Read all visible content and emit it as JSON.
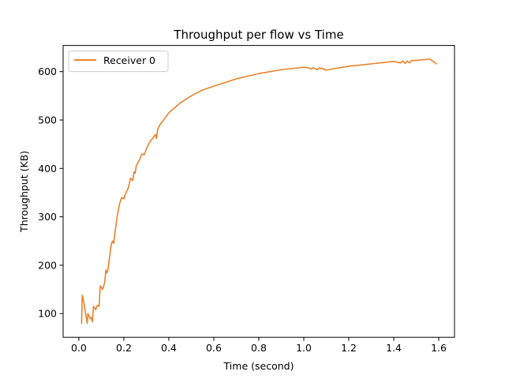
{
  "chart_data": {
    "type": "line",
    "title": "Throughput per flow vs Time",
    "xlabel": "Time (second)",
    "ylabel": "Throughput (KB)",
    "xlim": [
      -0.07,
      1.67
    ],
    "ylim": [
      51,
      654
    ],
    "xticks": [
      0.0,
      0.2,
      0.4,
      0.6,
      0.8,
      1.0,
      1.2,
      1.4,
      1.6
    ],
    "xtick_labels": [
      "0.0",
      "0.2",
      "0.4",
      "0.6",
      "0.8",
      "1.0",
      "1.2",
      "1.4",
      "1.6"
    ],
    "yticks": [
      100,
      200,
      300,
      400,
      500,
      600
    ],
    "ytick_labels": [
      "100",
      "200",
      "300",
      "400",
      "500",
      "600"
    ],
    "grid": false,
    "legend_position": "top-left",
    "series": [
      {
        "name": "Receiver 0",
        "color": "#e8822a",
        "x": [
          0.012,
          0.015,
          0.02,
          0.03,
          0.037,
          0.04,
          0.045,
          0.05,
          0.055,
          0.06,
          0.065,
          0.07,
          0.075,
          0.08,
          0.085,
          0.09,
          0.095,
          0.1,
          0.105,
          0.11,
          0.115,
          0.12,
          0.125,
          0.13,
          0.135,
          0.14,
          0.145,
          0.15,
          0.155,
          0.16,
          0.17,
          0.18,
          0.19,
          0.2,
          0.205,
          0.21,
          0.22,
          0.23,
          0.24,
          0.245,
          0.25,
          0.255,
          0.26,
          0.27,
          0.28,
          0.29,
          0.3,
          0.31,
          0.32,
          0.33,
          0.34,
          0.345,
          0.35,
          0.36,
          0.38,
          0.4,
          0.45,
          0.5,
          0.55,
          0.6,
          0.7,
          0.8,
          0.9,
          1.0,
          1.02,
          1.035,
          1.04,
          1.05,
          1.06,
          1.07,
          1.075,
          1.08,
          1.1,
          1.12,
          1.2,
          1.3,
          1.4,
          1.43,
          1.44,
          1.45,
          1.46,
          1.47,
          1.48,
          1.5,
          1.56,
          1.59
        ],
        "y": [
          80,
          138,
          128,
          100,
          80,
          100,
          96,
          90,
          92,
          83,
          115,
          112,
          108,
          115,
          117,
          115,
          157,
          155,
          150,
          156,
          165,
          190,
          184,
          192,
          212,
          230,
          245,
          250,
          245,
          265,
          300,
          325,
          340,
          337,
          345,
          350,
          360,
          380,
          375,
          393,
          390,
          405,
          410,
          418,
          430,
          428,
          440,
          450,
          458,
          463,
          470,
          462,
          480,
          490,
          502,
          515,
          535,
          550,
          562,
          570,
          585,
          596,
          604,
          609,
          608,
          605,
          608,
          606,
          604,
          608,
          606,
          607,
          603,
          605,
          611,
          616,
          621,
          618,
          622,
          617,
          622,
          618,
          623,
          623,
          626,
          616
        ]
      }
    ]
  }
}
